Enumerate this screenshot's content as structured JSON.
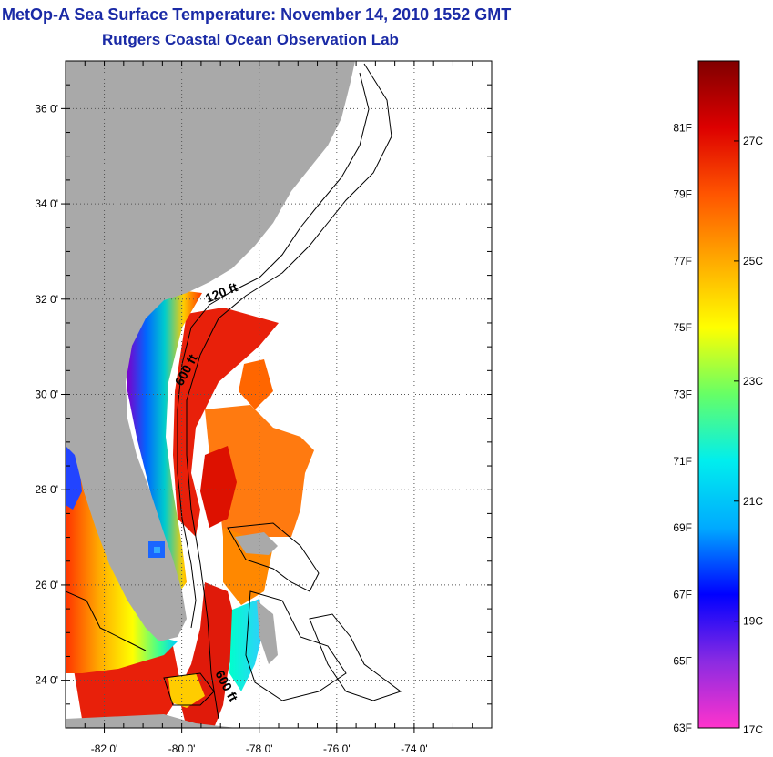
{
  "title": "MetOp-A Sea Surface Temperature:  November 14, 2010 1552 GMT",
  "subtitle": "Rutgers Coastal Ocean Observation Lab",
  "map": {
    "lon_range": [
      -83,
      -72
    ],
    "lat_range": [
      23,
      37
    ],
    "lon_ticks": [
      {
        "value": -82,
        "label": "-82 0'"
      },
      {
        "value": -80,
        "label": "-80 0'"
      },
      {
        "value": -78,
        "label": "-78 0'"
      },
      {
        "value": -76,
        "label": "-76 0'"
      },
      {
        "value": -74,
        "label": "-74 0'"
      }
    ],
    "lat_ticks": [
      {
        "value": 36,
        "label": "36 0'"
      },
      {
        "value": 34,
        "label": "34 0'"
      },
      {
        "value": 32,
        "label": "32 0'"
      },
      {
        "value": 30,
        "label": "30 0'"
      },
      {
        "value": 28,
        "label": "28 0'"
      },
      {
        "value": 26,
        "label": "26 0'"
      },
      {
        "value": 24,
        "label": "24 0'"
      }
    ],
    "grid": "dotted",
    "land_color": "#a9a9a9",
    "contour_labels": [
      {
        "text": "120 ft"
      },
      {
        "text": "600 ft"
      },
      {
        "text": "600 ft"
      }
    ]
  },
  "colorbar": {
    "range_f": [
      63,
      83
    ],
    "fahrenheit_labels": [
      {
        "value": 81,
        "label": "81F"
      },
      {
        "value": 79,
        "label": "79F"
      },
      {
        "value": 77,
        "label": "77F"
      },
      {
        "value": 75,
        "label": "75F"
      },
      {
        "value": 73,
        "label": "73F"
      },
      {
        "value": 71,
        "label": "71F"
      },
      {
        "value": 69,
        "label": "69F"
      },
      {
        "value": 67,
        "label": "67F"
      },
      {
        "value": 65,
        "label": "65F"
      },
      {
        "value": 63,
        "label": "63F"
      }
    ],
    "celsius_labels": [
      {
        "value": 27,
        "label": "27C"
      },
      {
        "value": 25,
        "label": "25C"
      },
      {
        "value": 23,
        "label": "23C"
      },
      {
        "value": 21,
        "label": "21C"
      },
      {
        "value": 19,
        "label": "19C"
      },
      {
        "value": 17,
        "label": "17C"
      }
    ],
    "stops": [
      "#ff33cc",
      "#8a2be2",
      "#0000ff",
      "#00aaff",
      "#00eeee",
      "#66ff66",
      "#ffff00",
      "#ffaa00",
      "#ff5500",
      "#dd0000",
      "#800000"
    ]
  }
}
